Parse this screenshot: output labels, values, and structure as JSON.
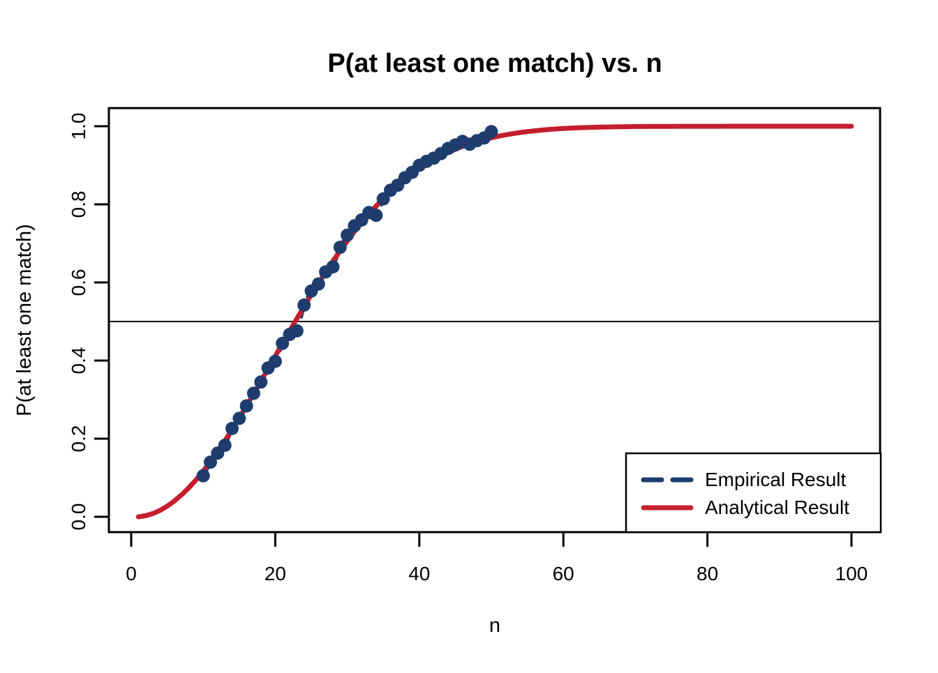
{
  "title": "P(at least one match) vs. n",
  "chart_data": {
    "type": "line",
    "title": "P(at least one match) vs. n",
    "xlabel": "n",
    "ylabel": "P(at least one match)",
    "xlim": [
      0,
      100
    ],
    "ylim": [
      0.0,
      1.0
    ],
    "grid": false,
    "xticks": [
      "0",
      "20",
      "40",
      "60",
      "80",
      "100"
    ],
    "xtick_values": [
      0,
      20,
      40,
      60,
      80,
      100
    ],
    "yticks": [
      "0.0",
      "0.2",
      "0.4",
      "0.6",
      "0.8",
      "1.0"
    ],
    "ytick_values": [
      0.0,
      0.2,
      0.4,
      0.6,
      0.8,
      1.0
    ],
    "reference_line_y": 0.5,
    "colors": {
      "empirical": "#1E3D6E",
      "analytical": "#C51E2D",
      "reference_line": "#000000",
      "axis": "#000000"
    },
    "legend": {
      "position": "bottom-right",
      "entries": [
        {
          "label": "Empirical Result",
          "color": "#1E3D6E",
          "style": "dashed"
        },
        {
          "label": "Analytical Result",
          "color": "#C51E2D",
          "style": "solid"
        }
      ]
    },
    "series": [
      {
        "name": "Analytical Result",
        "type": "line",
        "color": "#C51E2D",
        "x": [
          1,
          2,
          3,
          4,
          5,
          6,
          7,
          8,
          9,
          10,
          11,
          12,
          13,
          14,
          15,
          16,
          17,
          18,
          19,
          20,
          21,
          22,
          23,
          24,
          25,
          26,
          27,
          28,
          29,
          30,
          31,
          32,
          33,
          34,
          35,
          36,
          37,
          38,
          39,
          40,
          41,
          42,
          43,
          44,
          45,
          46,
          47,
          48,
          49,
          50,
          51,
          52,
          53,
          54,
          55,
          56,
          57,
          58,
          59,
          60,
          61,
          62,
          63,
          64,
          65,
          66,
          67,
          68,
          69,
          70,
          71,
          72,
          73,
          74,
          75,
          76,
          77,
          78,
          79,
          80,
          81,
          82,
          83,
          84,
          85,
          86,
          87,
          88,
          89,
          90,
          91,
          92,
          93,
          94,
          95,
          96,
          97,
          98,
          99,
          100
        ],
        "y": [
          0.0,
          0.0027,
          0.0082,
          0.0164,
          0.0271,
          0.0405,
          0.0562,
          0.0743,
          0.0946,
          0.1169,
          0.1411,
          0.167,
          0.1944,
          0.2231,
          0.2529,
          0.2836,
          0.315,
          0.3469,
          0.3791,
          0.4114,
          0.4437,
          0.4757,
          0.5073,
          0.5383,
          0.5687,
          0.5982,
          0.6269,
          0.6545,
          0.681,
          0.7063,
          0.7305,
          0.7533,
          0.775,
          0.7953,
          0.8144,
          0.8322,
          0.8487,
          0.8641,
          0.8782,
          0.8912,
          0.9032,
          0.914,
          0.9239,
          0.9329,
          0.941,
          0.9483,
          0.9548,
          0.9606,
          0.9658,
          0.9704,
          0.9744,
          0.978,
          0.9811,
          0.9839,
          0.9863,
          0.9883,
          0.9901,
          0.9917,
          0.993,
          0.9941,
          0.9951,
          0.9959,
          0.9966,
          0.9972,
          0.9977,
          0.9981,
          0.9984,
          0.9987,
          0.999,
          0.9992,
          0.9993,
          0.9995,
          0.9996,
          0.9997,
          0.9997,
          0.9998,
          0.9998,
          0.9999,
          0.9999,
          0.9999,
          0.9999,
          0.9999,
          1.0,
          1.0,
          1.0,
          1.0,
          1.0,
          1.0,
          1.0,
          1.0,
          1.0,
          1.0,
          1.0,
          1.0,
          1.0,
          1.0,
          1.0,
          1.0,
          1.0,
          1.0
        ]
      },
      {
        "name": "Empirical Result",
        "type": "scatter-line",
        "color": "#1E3D6E",
        "dashed": true,
        "x": [
          10,
          11,
          12,
          13,
          14,
          15,
          16,
          17,
          18,
          19,
          20,
          21,
          22,
          23,
          24,
          25,
          26,
          27,
          28,
          29,
          30,
          31,
          32,
          33,
          34,
          35,
          36,
          37,
          38,
          39,
          40,
          41,
          42,
          43,
          44,
          45,
          46,
          47,
          48,
          49,
          50
        ],
        "y": [
          0.105,
          0.14,
          0.163,
          0.183,
          0.226,
          0.252,
          0.284,
          0.316,
          0.345,
          0.381,
          0.398,
          0.444,
          0.467,
          0.476,
          0.542,
          0.578,
          0.596,
          0.627,
          0.64,
          0.69,
          0.721,
          0.745,
          0.76,
          0.779,
          0.772,
          0.814,
          0.836,
          0.849,
          0.868,
          0.882,
          0.9,
          0.91,
          0.918,
          0.93,
          0.943,
          0.952,
          0.961,
          0.954,
          0.963,
          0.97,
          0.986
        ]
      }
    ]
  }
}
